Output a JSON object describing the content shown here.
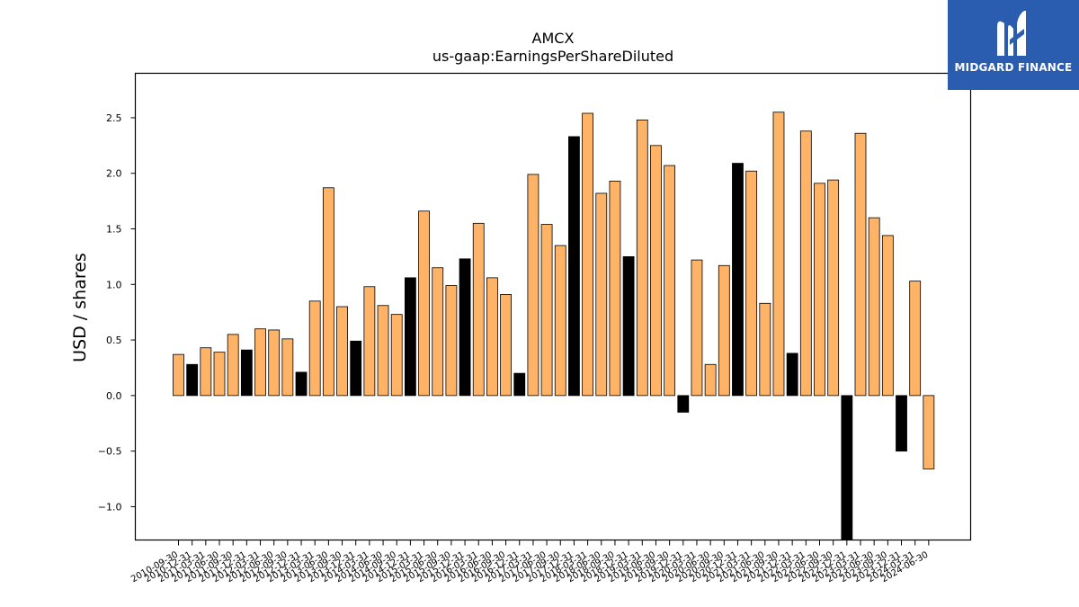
{
  "brand": {
    "name": "MIDGARD FINANCE",
    "bg_color": "#2a5db0",
    "icon": "midgard-m-icon"
  },
  "chart_data": {
    "type": "bar",
    "title": "AMCX",
    "subtitle": "us-gaap:EarningsPerShareDiluted",
    "ylabel": "USD / shares",
    "xlabel": "",
    "ylim": [
      -1.3,
      2.9
    ],
    "yticks": [
      -1.0,
      -0.5,
      0.0,
      0.5,
      1.0,
      1.5,
      2.0,
      2.5
    ],
    "grid": false,
    "colors": {
      "default": "#ffb366",
      "highlight": "#000000"
    },
    "highlight_rule": "black bars mark fiscal Q4 periods",
    "categories": [
      "2010-09-30",
      "2010-12-31",
      "2011-03-31",
      "2011-06-30",
      "2011-09-30",
      "2011-12-31",
      "2012-03-31",
      "2012-06-30",
      "2012-09-30",
      "2012-12-31",
      "2013-03-31",
      "2013-06-30",
      "2013-09-30",
      "2013-12-31",
      "2014-03-31",
      "2014-06-30",
      "2014-09-30",
      "2014-12-31",
      "2015-03-31",
      "2015-06-30",
      "2015-09-30",
      "2015-12-31",
      "2016-03-31",
      "2016-06-30",
      "2016-09-30",
      "2016-12-31",
      "2017-03-31",
      "2017-06-30",
      "2017-09-30",
      "2017-12-31",
      "2018-03-31",
      "2018-06-30",
      "2018-09-30",
      "2018-12-31",
      "2019-03-31",
      "2019-06-30",
      "2019-09-30",
      "2019-12-31",
      "2020-03-31",
      "2020-06-30",
      "2020-09-30",
      "2020-12-31",
      "2021-03-31",
      "2021-06-30",
      "2021-09-30",
      "2021-12-31",
      "2022-03-31",
      "2022-06-30",
      "2022-09-30",
      "2022-12-31",
      "2023-03-31",
      "2023-06-30",
      "2023-09-30",
      "2023-12-31",
      "2024-03-31",
      "2024-06-30"
    ],
    "values": [
      0.37,
      0.28,
      0.43,
      0.39,
      0.55,
      0.41,
      0.6,
      0.59,
      0.51,
      0.21,
      0.85,
      1.87,
      0.8,
      0.49,
      0.98,
      0.81,
      0.73,
      1.06,
      1.66,
      1.15,
      0.99,
      1.23,
      1.55,
      1.06,
      0.91,
      0.2,
      1.99,
      1.54,
      1.35,
      2.33,
      2.54,
      1.82,
      1.93,
      1.25,
      2.48,
      2.25,
      2.07,
      -0.15,
      1.22,
      0.28,
      1.17,
      2.09,
      2.02,
      0.83,
      2.55,
      0.38,
      2.38,
      1.91,
      1.94,
      -1.45,
      2.36,
      1.6,
      1.44,
      -0.5,
      1.03,
      -0.66
    ],
    "highlight": [
      false,
      true,
      false,
      false,
      false,
      true,
      false,
      false,
      false,
      true,
      false,
      false,
      false,
      true,
      false,
      false,
      false,
      true,
      false,
      false,
      false,
      true,
      false,
      false,
      false,
      true,
      false,
      false,
      false,
      true,
      false,
      false,
      false,
      true,
      false,
      false,
      false,
      true,
      false,
      false,
      false,
      true,
      false,
      false,
      false,
      true,
      false,
      false,
      false,
      true,
      false,
      false,
      false,
      true,
      false,
      false
    ]
  }
}
